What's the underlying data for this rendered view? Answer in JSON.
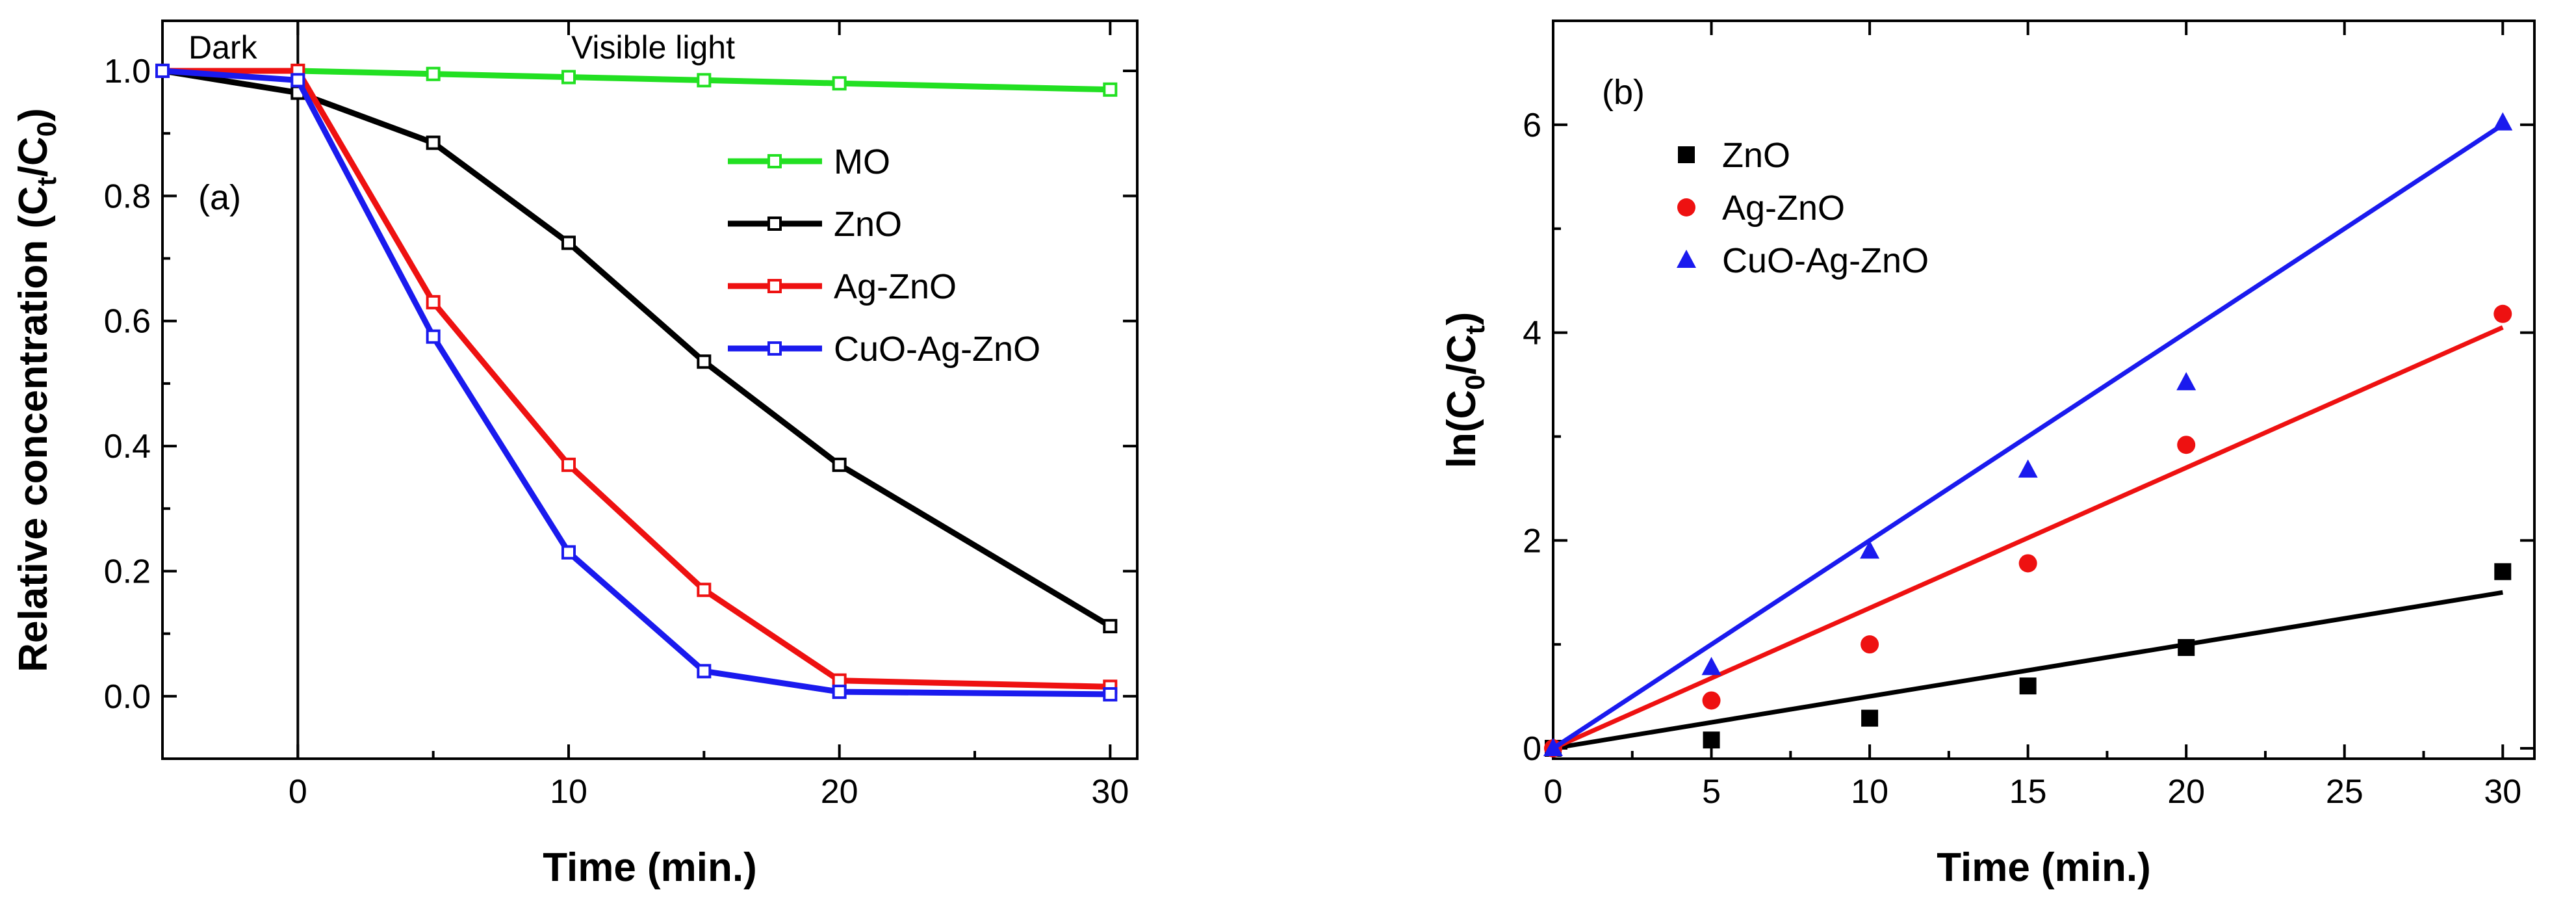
{
  "chart_data": [
    {
      "type": "line",
      "panel_label": "(a)",
      "xlabel": "Time (min.)",
      "ylabel_main": "Relative concentration (C",
      "ylabel_sub1": "t",
      "ylabel_mid": "/C",
      "ylabel_sub2": "0",
      "ylabel_end": ")",
      "xlim": [
        -5,
        31
      ],
      "ylim": [
        -0.1,
        1.08
      ],
      "xticks": [
        0,
        10,
        20,
        30
      ],
      "xtick_labels": [
        "0",
        "10",
        "20",
        "30"
      ],
      "yticks": [
        0.0,
        0.2,
        0.4,
        0.6,
        0.8,
        1.0
      ],
      "ytick_labels": [
        "0.0",
        "0.2",
        "0.4",
        "0.6",
        "0.8",
        "1.0"
      ],
      "region_labels": {
        "dark": "Dark",
        "light": "Visible light"
      },
      "divider_x": 0,
      "legend_position": "center-right",
      "series": [
        {
          "name": "MO",
          "color": "#22e022",
          "x": [
            -5,
            0,
            5,
            10,
            15,
            20,
            30
          ],
          "y": [
            1.0,
            1.0,
            0.995,
            0.99,
            0.985,
            0.98,
            0.97
          ]
        },
        {
          "name": "ZnO",
          "color": "#000000",
          "x": [
            -5,
            0,
            5,
            10,
            15,
            20,
            30
          ],
          "y": [
            1.0,
            0.965,
            0.885,
            0.725,
            0.535,
            0.37,
            0.112
          ]
        },
        {
          "name": "Ag-ZnO",
          "color": "#ee1111",
          "x": [
            -5,
            0,
            5,
            10,
            15,
            20,
            30
          ],
          "y": [
            1.0,
            1.0,
            0.63,
            0.37,
            0.17,
            0.025,
            0.015
          ]
        },
        {
          "name": "CuO-Ag-ZnO",
          "color": "#1a1aee",
          "x": [
            -5,
            0,
            5,
            10,
            15,
            20,
            30
          ],
          "y": [
            1.0,
            0.985,
            0.575,
            0.23,
            0.04,
            0.007,
            0.003
          ]
        }
      ]
    },
    {
      "type": "scatter",
      "panel_label": "(b)",
      "xlabel": "Time (min.)",
      "ylabel_main": "ln(C",
      "ylabel_sub1": "0",
      "ylabel_mid": "/C",
      "ylabel_sub2": "t",
      "ylabel_end": ")",
      "xlim": [
        0,
        31
      ],
      "ylim": [
        -0.1,
        7
      ],
      "xticks": [
        0,
        5,
        10,
        15,
        20,
        25,
        30
      ],
      "xtick_labels": [
        "0",
        "5",
        "10",
        "15",
        "20",
        "25",
        "30"
      ],
      "yticks": [
        0,
        2,
        4,
        6
      ],
      "ytick_labels": [
        "0",
        "2",
        "4",
        "6"
      ],
      "legend_position": "top-left",
      "series": [
        {
          "name": "ZnO",
          "color": "#000000",
          "marker": "square",
          "x": [
            0,
            5,
            10,
            15,
            20,
            30
          ],
          "y": [
            0,
            0.08,
            0.29,
            0.6,
            0.97,
            1.7
          ],
          "fit_slope": 0.05
        },
        {
          "name": "Ag-ZnO",
          "color": "#ee1111",
          "marker": "circle",
          "x": [
            0,
            5,
            10,
            15,
            20,
            30
          ],
          "y": [
            0,
            0.46,
            1.0,
            1.78,
            2.92,
            4.18
          ],
          "fit_slope": 0.135
        },
        {
          "name": "CuO-Ag-ZnO",
          "color": "#1a1aee",
          "marker": "triangle",
          "x": [
            0,
            5,
            10,
            15,
            20,
            30
          ],
          "y": [
            0,
            0.78,
            1.9,
            2.68,
            3.52,
            6.02
          ],
          "fit_slope": 0.2
        }
      ]
    }
  ]
}
